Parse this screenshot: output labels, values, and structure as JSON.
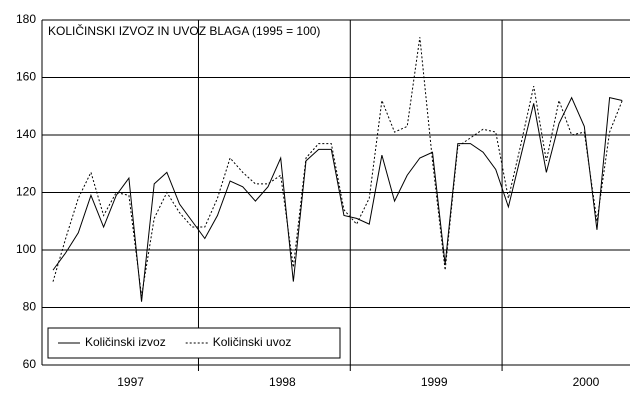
{
  "chart_data": {
    "type": "line",
    "title": "KOLIČINSKI IZVOZ IN UVOZ BLAGA (1995 = 100)",
    "year_labels": [
      "1997",
      "1998",
      "1999",
      "2000"
    ],
    "series": [
      {
        "name": "Količinski izvoz",
        "color": "#000000",
        "dash": "none",
        "values": [
          93,
          99,
          106,
          119,
          108,
          119,
          125,
          82,
          123,
          127,
          116,
          110,
          104,
          112,
          124,
          122,
          117,
          122,
          132,
          89,
          131,
          135,
          135,
          112,
          111,
          109,
          133,
          117,
          126,
          132,
          134,
          95,
          137,
          137,
          134,
          128,
          115,
          133,
          151,
          127,
          144,
          153,
          143,
          107,
          153,
          152
        ]
      },
      {
        "name": "Količinski uvoz",
        "color": "#000000",
        "dash": "2,2",
        "values": [
          89,
          104,
          118,
          127,
          112,
          120,
          119,
          84,
          111,
          120,
          113,
          108,
          108,
          118,
          132,
          127,
          123,
          123,
          126,
          94,
          132,
          137,
          137,
          114,
          109,
          118,
          152,
          141,
          143,
          174,
          131,
          93,
          136,
          139,
          142,
          141,
          118,
          137,
          157,
          131,
          152,
          140,
          141,
          110,
          141,
          152
        ]
      }
    ],
    "ylim": [
      60,
      180
    ],
    "yticks": [
      60,
      80,
      100,
      120,
      140,
      160,
      180
    ],
    "grid": true
  }
}
